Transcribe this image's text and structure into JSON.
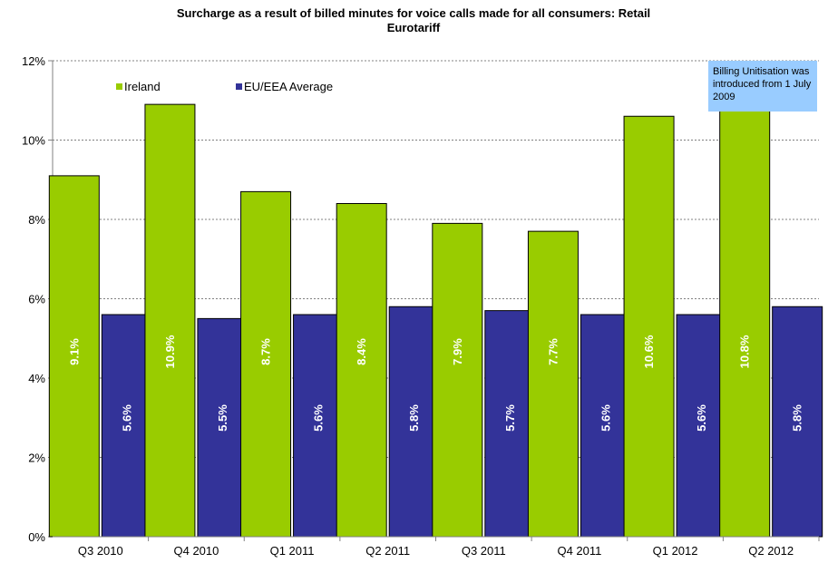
{
  "chart_data": {
    "type": "bar",
    "title": "Surcharge as a result of billed minutes for voice calls made for all consumers: Retail",
    "subtitle": "Eurotariff",
    "xlabel": "",
    "ylabel": "",
    "ylim": [
      0,
      12
    ],
    "yticks": [
      "0%",
      "2%",
      "4%",
      "6%",
      "8%",
      "10%",
      "12%"
    ],
    "grid": true,
    "legend_position": "top-left",
    "categories": [
      "Q3 2010",
      "Q4 2010",
      "Q1 2011",
      "Q2 2011",
      "Q3 2011",
      "Q4 2011",
      "Q1 2012",
      "Q2 2012"
    ],
    "series": [
      {
        "name": "Ireland",
        "color": "#99cc00",
        "values": [
          9.1,
          10.9,
          8.7,
          8.4,
          7.9,
          7.7,
          10.6,
          10.8
        ],
        "labels": [
          "9.1%",
          "10.9%",
          "8.7%",
          "8.4%",
          "7.9%",
          "7.7%",
          "10.6%",
          "10.8%"
        ]
      },
      {
        "name": "EU/EEA Average",
        "color": "#333399",
        "values": [
          5.6,
          5.5,
          5.6,
          5.8,
          5.7,
          5.6,
          5.6,
          5.8
        ],
        "labels": [
          "5.6%",
          "5.5%",
          "5.6%",
          "5.8%",
          "5.7%",
          "5.6%",
          "5.6%",
          "5.8%"
        ]
      }
    ],
    "annotation": {
      "lines": [
        "Billing Unitisation was",
        "introduced from 1 July",
        "2009"
      ],
      "fill": "#99ccff"
    }
  }
}
